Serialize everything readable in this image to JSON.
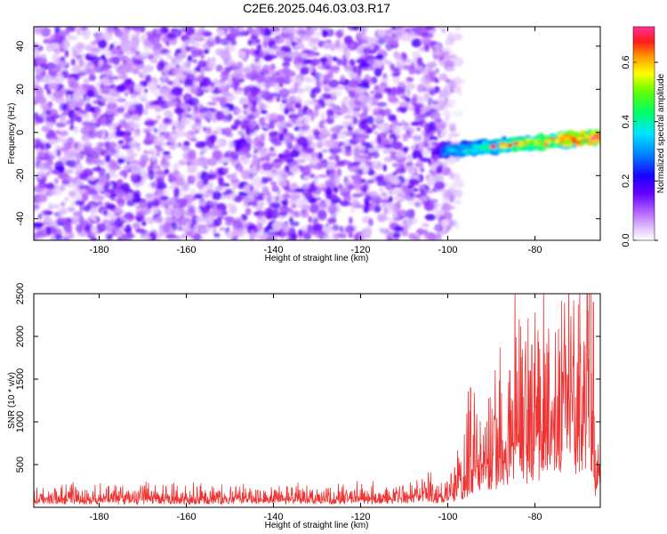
{
  "title": "C2E6.2025.046.03.03.R17",
  "chart_data": [
    {
      "type": "heatmap",
      "xlabel": "Height of straight line (km)",
      "ylabel": "Frequency (Hz)",
      "xlim": [
        -195,
        -65
      ],
      "ylim": [
        -50,
        49
      ],
      "x_ticks": [
        -180,
        -160,
        -140,
        -120,
        -100,
        -80
      ],
      "x_tick_labels": [
        "-180",
        "-160",
        "-140",
        "-120",
        "-100",
        "-80"
      ],
      "y_ticks": [
        -40,
        -20,
        0,
        20,
        40
      ],
      "y_tick_labels": [
        "-40",
        "-20",
        "0",
        "20",
        "40"
      ],
      "colorbar": {
        "label": "Normalized spectral amplitude",
        "range": [
          0,
          0.72
        ],
        "ticks": [
          0,
          0.2,
          0.4,
          0.6
        ],
        "tick_labels": [
          "0.0",
          "0.2",
          "0.4",
          "0.6"
        ]
      },
      "noise": {
        "x_range": [
          -195,
          -99
        ],
        "freq_range": [
          -50,
          49
        ],
        "amplitude": [
          0.03,
          0.18
        ]
      },
      "signal_band": {
        "x_range": [
          -103,
          -65
        ],
        "center_freq_start": -9,
        "center_freq_end": -2,
        "halfwidth_hz": 3,
        "amplitude_start": 0.25,
        "amplitude_end": 0.65,
        "peak_amplitude": 0.72
      }
    },
    {
      "type": "line",
      "xlabel": "Height of straight line (km)",
      "ylabel": "SNR (10 * v/v)",
      "xlim": [
        -195,
        -65
      ],
      "ylim": [
        0,
        2500
      ],
      "x_ticks": [
        -180,
        -160,
        -140,
        -120,
        -100,
        -80
      ],
      "x_tick_labels": [
        "-180",
        "-160",
        "-140",
        "-120",
        "-100",
        "-80"
      ],
      "y_ticks": [
        500,
        1000,
        1500,
        2000,
        2500
      ],
      "y_tick_labels": [
        "500",
        "1000",
        "1500",
        "2000",
        "2500"
      ],
      "series": [
        {
          "color": "#ee3333",
          "x": [
            -195,
            -190,
            -185,
            -180,
            -175,
            -170,
            -165,
            -160,
            -155,
            -150,
            -145,
            -140,
            -135,
            -130,
            -125,
            -120,
            -115,
            -110,
            -105,
            -100,
            -98,
            -96,
            -95,
            -94,
            -92,
            -90,
            -88,
            -86,
            -84,
            -83,
            -82,
            -80,
            -78,
            -76,
            -74,
            -72,
            -70,
            -68,
            -67,
            -66,
            -65.5,
            -65
          ],
          "baseline": [
            80,
            80,
            80,
            80,
            80,
            80,
            80,
            80,
            80,
            80,
            80,
            85,
            85,
            85,
            85,
            90,
            95,
            100,
            110,
            130,
            150,
            220,
            350,
            420,
            450,
            500,
            560,
            640,
            650,
            700,
            680,
            720,
            760,
            780,
            820,
            850,
            860,
            800,
            650,
            200,
            300,
            500
          ],
          "spread": [
            130,
            130,
            130,
            130,
            130,
            130,
            130,
            130,
            130,
            130,
            130,
            130,
            130,
            130,
            130,
            140,
            150,
            170,
            200,
            260,
            320,
            500,
            1100,
            900,
            800,
            700,
            800,
            900,
            1300,
            1500,
            1200,
            1300,
            1400,
            1300,
            1400,
            1400,
            1450,
            1700,
            1800,
            400,
            350,
            400
          ],
          "peaks": [
            {
              "x": -94.8,
              "y": 1400
            },
            {
              "x": -83.6,
              "y": 2200
            },
            {
              "x": -80.7,
              "y": 1900
            },
            {
              "x": -77.6,
              "y": 1680
            },
            {
              "x": -72.5,
              "y": 1550
            },
            {
              "x": -67.3,
              "y": 2500
            },
            {
              "x": -66.6,
              "y": 2400
            },
            {
              "x": -68.5,
              "y": 1900
            }
          ]
        }
      ]
    }
  ]
}
